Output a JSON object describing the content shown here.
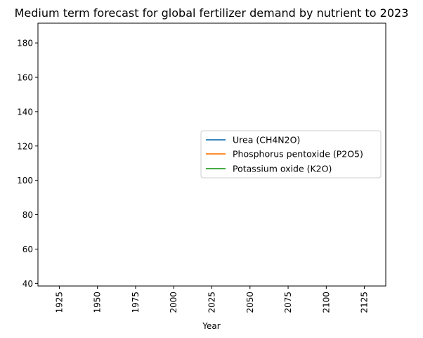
{
  "chart_data": {
    "type": "line",
    "title": "Medium term forecast for global fertilizer demand by nutrient to 2023",
    "xlabel": "Year",
    "ylabel": "",
    "xlim": [
      1911,
      2139
    ],
    "ylim": [
      38.5,
      191.5
    ],
    "x_ticks": [
      1925,
      1950,
      1975,
      2000,
      2025,
      2050,
      2075,
      2100,
      2125
    ],
    "y_ticks": [
      40,
      60,
      80,
      100,
      120,
      140,
      160,
      180
    ],
    "legend_position": "center-right",
    "grid": false,
    "series": [
      {
        "name": "Urea (CH4N2O)",
        "color": "#1f77b4",
        "x": [],
        "y": []
      },
      {
        "name": "Phosphorus pentoxide (P2O5)",
        "color": "#ff7f0e",
        "x": [],
        "y": []
      },
      {
        "name": "Potassium oxide (K2O)",
        "color": "#2ca02c",
        "x": [],
        "y": []
      }
    ]
  }
}
